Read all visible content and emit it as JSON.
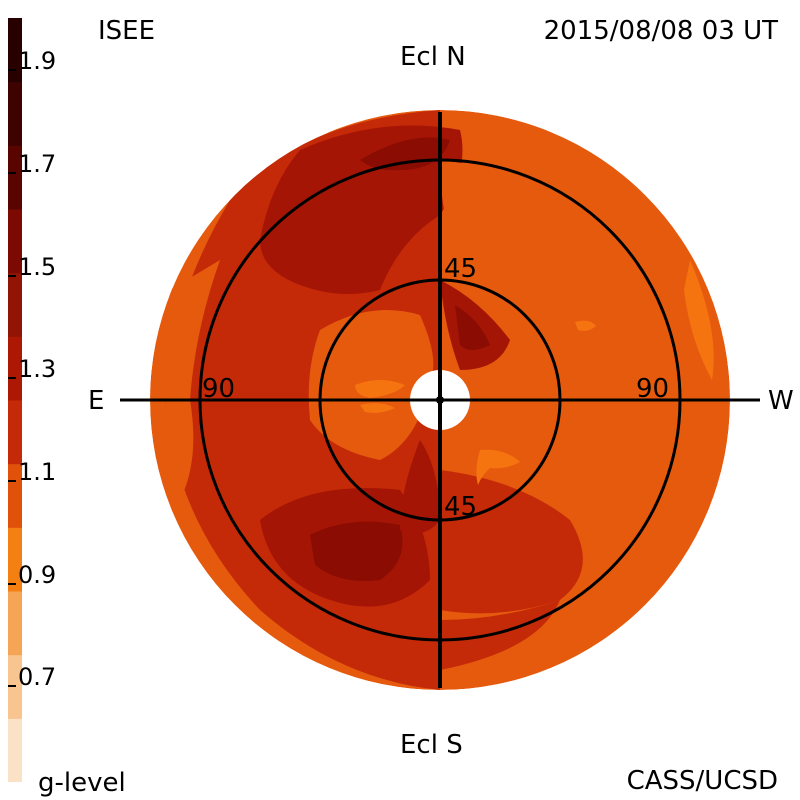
{
  "header": {
    "source": "ISEE",
    "datetime": "2015/08/08 03 UT"
  },
  "footer": {
    "legend_title": "g-level",
    "credit": "CASS/UCSD"
  },
  "compass": {
    "north": "Ecl N",
    "south": "Ecl S",
    "east": "E",
    "west": "W"
  },
  "rings": {
    "inner_top": "45",
    "inner_bottom": "45",
    "outer_left": "90",
    "outer_right": "90"
  },
  "colorbar": {
    "ticks": [
      "1.9",
      "1.7",
      "1.5",
      "1.3",
      "1.1",
      "0.9",
      "0.7"
    ],
    "bands_bottom_to_top": [
      "#fbe1c6",
      "#f8c490",
      "#f6a456",
      "#f48014",
      "#e0520a",
      "#c52a08",
      "#ad1804",
      "#921404",
      "#7c0a02",
      "#5a0400",
      "#3e0200",
      "#280000"
    ]
  },
  "map_colors": {
    "base": "#e65a0e",
    "rim": "#ee6a10",
    "mid_red": "#c42a08",
    "dark_red": "#a51505",
    "darker_red": "#8a0c03",
    "bright": "#f67410",
    "bright2": "#fa8812"
  }
}
